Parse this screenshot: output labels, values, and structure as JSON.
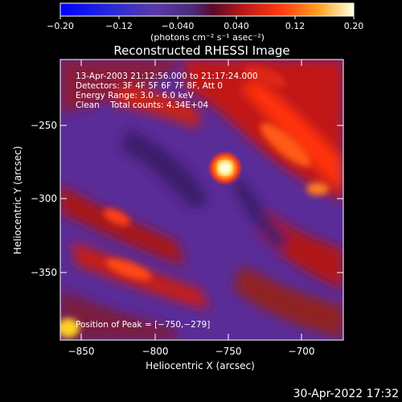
{
  "colorbar": {
    "tick_labels": [
      "−0.20",
      "−0.12",
      "−0.040",
      "0.040",
      "0.12",
      "0.20"
    ],
    "units": "(photons cm⁻² s⁻¹ asec⁻²)"
  },
  "image": {
    "title": "Reconstructed RHESSI Image",
    "annotation_lines": [
      "13-Apr-2003 21:12:56.000 to 21:17:24.000",
      "Detectors: 3F 4F 5F 6F 7F 8F, Att 0",
      "Energy Range: 3.0 - 6.0 keV",
      "Clean    Total counts: 4.34E+04"
    ],
    "peak_label": "Position of Peak = [−750,−279]",
    "x_axis": {
      "label": "Heliocentric X (arcsec)",
      "ticks": [
        "−850",
        "−800",
        "−750",
        "−700"
      ]
    },
    "y_axis": {
      "label": "Heliocentric Y (arcsec)",
      "ticks": [
        "−250",
        "−300",
        "−350"
      ]
    }
  },
  "footer": {
    "timestamp": "30-Apr-2022 17:32"
  },
  "colors": {
    "background": "#000000",
    "text": "#ffffff",
    "low": "#5a2a9a",
    "high": "#ffffd0"
  }
}
